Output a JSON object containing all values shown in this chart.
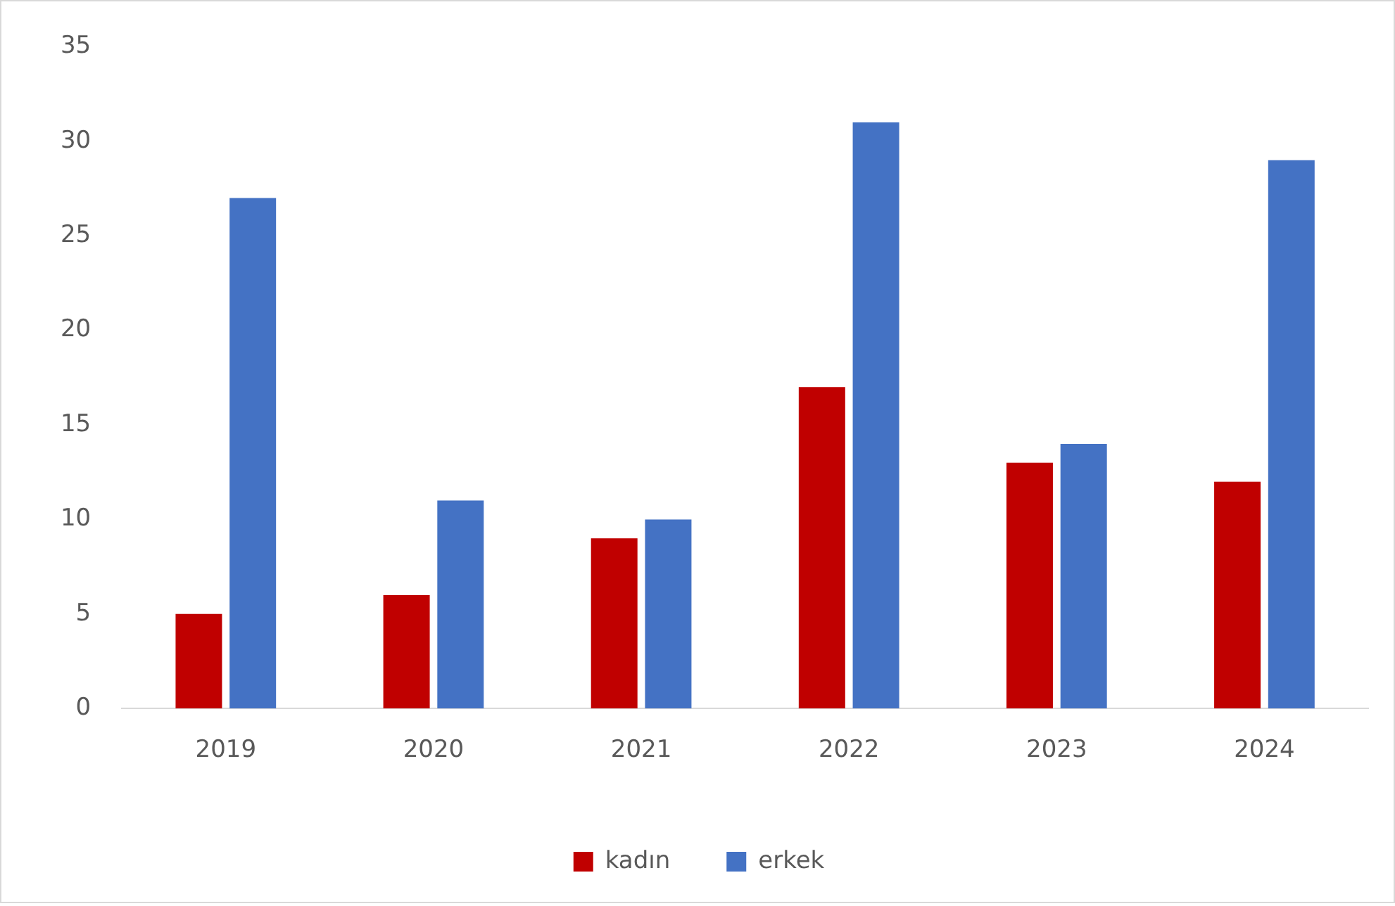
{
  "chart_data": {
    "type": "bar",
    "categories": [
      "2019",
      "2020",
      "2021",
      "2022",
      "2023",
      "2024"
    ],
    "series": [
      {
        "name": "kadın",
        "color": "#c00000",
        "values": [
          5,
          6,
          9,
          17,
          13,
          12
        ]
      },
      {
        "name": "erkek",
        "color": "#4472c4",
        "values": [
          27,
          11,
          10,
          31,
          14,
          29
        ]
      }
    ],
    "ylim": [
      0,
      35
    ],
    "yticks": [
      0,
      5,
      10,
      15,
      20,
      25,
      30,
      35
    ],
    "grid": false,
    "legend": "bottom"
  }
}
